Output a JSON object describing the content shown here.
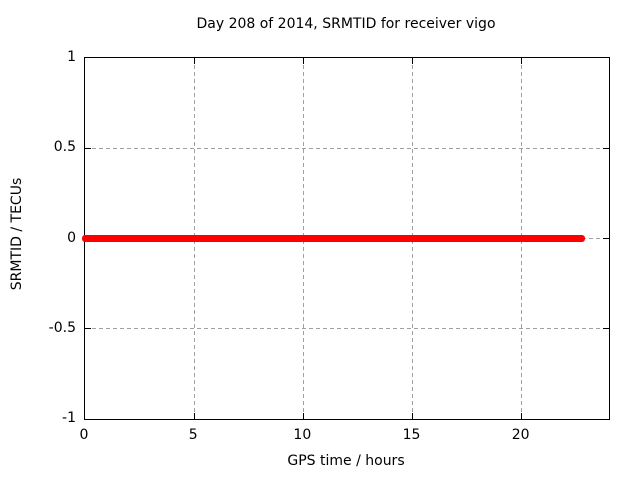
{
  "chart_data": {
    "type": "line",
    "title": "Day 208 of 2014, SRMTID for receiver vigo",
    "xlabel": "GPS time / hours",
    "ylabel": "SRMTID / TECUs",
    "xlim": [
      0,
      24
    ],
    "ylim": [
      -1,
      1
    ],
    "xticks": [
      0,
      5,
      10,
      15,
      20
    ],
    "yticks": [
      1,
      0.5,
      0,
      -0.5,
      -1
    ],
    "grid": {
      "visible": true,
      "style": "dashed",
      "color": "#a0a0a0"
    },
    "legend": "none",
    "border_color": "#000000",
    "background": "#ffffff",
    "tick_label_format": {
      "yticks_display": [
        "1",
        "0.5",
        "0",
        "-0.5",
        "-1"
      ],
      "xticks_display": [
        "0",
        "5",
        "10",
        "15",
        "20"
      ]
    },
    "series": [
      {
        "name": "SRMTID",
        "color": "#ff0000",
        "linewidth": 7,
        "points": [
          [
            0,
            0
          ],
          [
            22.9,
            0
          ]
        ]
      }
    ]
  }
}
